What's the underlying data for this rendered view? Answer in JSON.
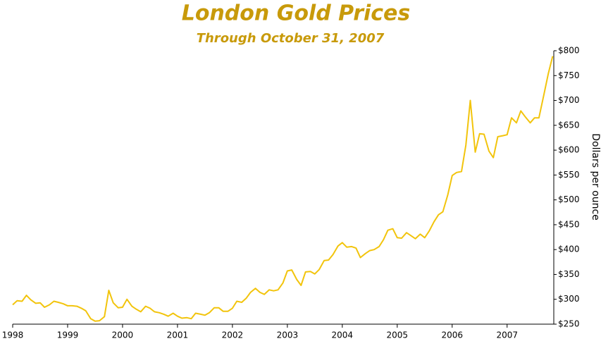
{
  "chart_data": {
    "type": "line",
    "title": "London Gold Prices",
    "subtitle": "Through October 31, 2007",
    "y_label": "Dollars per ounce",
    "color": "#f2c40c",
    "x": [
      1998,
      1998.08,
      1998.17,
      1998.25,
      1998.33,
      1998.42,
      1998.5,
      1998.58,
      1998.67,
      1998.75,
      1998.83,
      1998.92,
      1999,
      1999.08,
      1999.17,
      1999.25,
      1999.33,
      1999.42,
      1999.5,
      1999.58,
      1999.67,
      1999.75,
      1999.83,
      1999.92,
      2000,
      2000.08,
      2000.17,
      2000.25,
      2000.33,
      2000.42,
      2000.5,
      2000.58,
      2000.67,
      2000.75,
      2000.83,
      2000.92,
      2001,
      2001.08,
      2001.17,
      2001.25,
      2001.33,
      2001.42,
      2001.5,
      2001.58,
      2001.67,
      2001.75,
      2001.83,
      2001.92,
      2002,
      2002.08,
      2002.17,
      2002.25,
      2002.33,
      2002.42,
      2002.5,
      2002.58,
      2002.67,
      2002.75,
      2002.83,
      2002.92,
      2003,
      2003.08,
      2003.17,
      2003.25,
      2003.33,
      2003.42,
      2003.5,
      2003.58,
      2003.67,
      2003.75,
      2003.83,
      2003.92,
      2004,
      2004.08,
      2004.17,
      2004.25,
      2004.33,
      2004.42,
      2004.5,
      2004.58,
      2004.67,
      2004.75,
      2004.83,
      2004.92,
      2005,
      2005.08,
      2005.17,
      2005.25,
      2005.33,
      2005.42,
      2005.5,
      2005.58,
      2005.67,
      2005.75,
      2005.83,
      2005.92,
      2006,
      2006.08,
      2006.17,
      2006.25,
      2006.33,
      2006.42,
      2006.5,
      2006.58,
      2006.67,
      2006.75,
      2006.83,
      2006.92,
      2007,
      2007.08,
      2007.17,
      2007.25,
      2007.33,
      2007.42,
      2007.5,
      2007.58,
      2007.67,
      2007.75,
      2007.83
    ],
    "values": [
      289,
      297,
      296,
      308,
      299,
      292,
      293,
      284,
      289,
      296,
      294,
      291,
      287,
      287,
      286,
      282,
      277,
      261,
      256,
      257,
      265,
      318,
      293,
      283,
      284,
      300,
      286,
      280,
      275,
      286,
      282,
      275,
      273,
      270,
      266,
      272,
      266,
      262,
      263,
      261,
      272,
      270,
      268,
      273,
      283,
      283,
      276,
      276,
      282,
      296,
      294,
      302,
      314,
      322,
      314,
      310,
      319,
      317,
      319,
      333,
      357,
      359,
      340,
      328,
      355,
      356,
      351,
      360,
      378,
      379,
      390,
      407,
      414,
      405,
      406,
      403,
      384,
      392,
      398,
      400,
      406,
      420,
      439,
      442,
      424,
      423,
      434,
      428,
      422,
      431,
      424,
      437,
      456,
      470,
      476,
      510,
      549,
      555,
      557,
      610,
      700,
      596,
      633,
      632,
      598,
      585,
      627,
      629,
      631,
      665,
      655,
      679,
      667,
      655,
      665,
      665,
      712,
      754,
      789
    ],
    "xlim": [
      1998,
      2007.85
    ],
    "xticks": [
      1998,
      1999,
      2000,
      2001,
      2002,
      2003,
      2004,
      2005,
      2006,
      2007
    ],
    "ylim": [
      250,
      800
    ],
    "yticks": [
      {
        "value": 250,
        "label": "$250"
      },
      {
        "value": 300,
        "label": "$300"
      },
      {
        "value": 350,
        "label": "$350"
      },
      {
        "value": 400,
        "label": "$400"
      },
      {
        "value": 450,
        "label": "$450"
      },
      {
        "value": 500,
        "label": "$500"
      },
      {
        "value": 550,
        "label": "$550"
      },
      {
        "value": 600,
        "label": "$600"
      },
      {
        "value": 650,
        "label": "$650"
      },
      {
        "value": 700,
        "label": "$700"
      },
      {
        "value": 750,
        "label": "$750"
      },
      {
        "value": 800,
        "label": "$800"
      }
    ]
  }
}
